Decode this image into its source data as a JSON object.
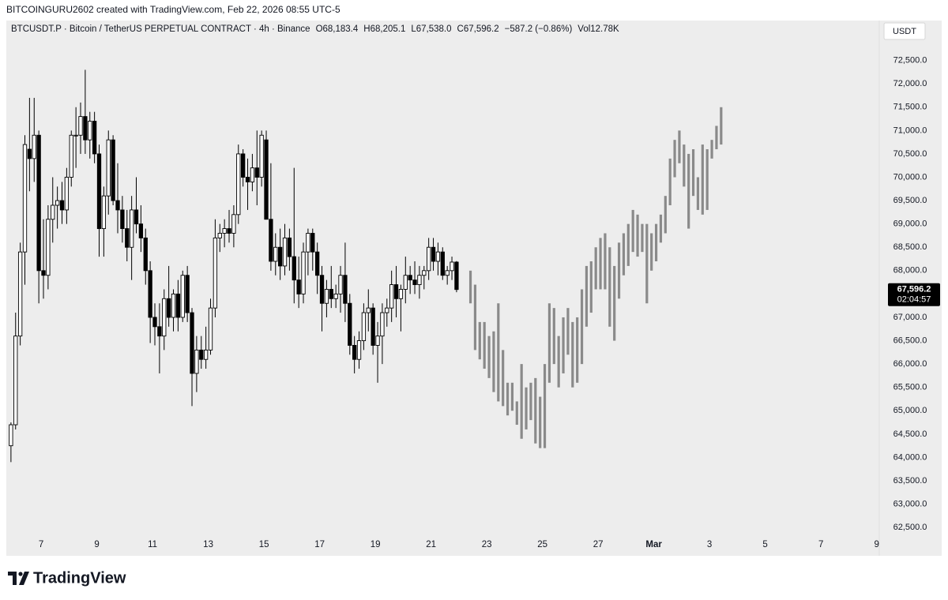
{
  "chart_data": {
    "type": "candlestick",
    "watermark": "BITCOINGURU2602 created with TradingView.com, Feb 22, 2026 08:55 UTC-5",
    "title": "BTCUSDT.P · Bitcoin / TetherUS PERPETUAL CONTRACT · 4h · Binance",
    "stats": [
      "O68,183.4",
      "H68,205.1",
      "L67,538.0",
      "C67,596.2",
      "−587.2 (−0.86%)",
      "Vol12.78K"
    ],
    "currency": "USDT",
    "last_price": {
      "value": 67596.2,
      "label": "67,596.2"
    },
    "countdown": "02:04:57",
    "brand": "TradingView",
    "grid": false,
    "xlim": [
      -7.5,
      180.4
    ],
    "xticks": [
      {
        "value": 0,
        "label": "7"
      },
      {
        "value": 12,
        "label": "9"
      },
      {
        "value": 24,
        "label": "11"
      },
      {
        "value": 36,
        "label": "13"
      },
      {
        "value": 48,
        "label": "15"
      },
      {
        "value": 60,
        "label": "17"
      },
      {
        "value": 72,
        "label": "19"
      },
      {
        "value": 84,
        "label": "21"
      },
      {
        "value": 96,
        "label": "23"
      },
      {
        "value": 108,
        "label": "25"
      },
      {
        "value": 120,
        "label": "27"
      },
      {
        "value": 132,
        "label": "Mar"
      },
      {
        "value": 144,
        "label": "3"
      },
      {
        "value": 156,
        "label": "5"
      },
      {
        "value": 168,
        "label": "7"
      },
      {
        "value": 180,
        "label": "9"
      }
    ],
    "ylim": [
      62300,
      72950
    ],
    "yticks": [
      {
        "value": 62500,
        "label": "62,500.0"
      },
      {
        "value": 63000,
        "label": "63,000.0"
      },
      {
        "value": 63500,
        "label": "63,500.0"
      },
      {
        "value": 64000,
        "label": "64,000.0"
      },
      {
        "value": 64500,
        "label": "64,500.0"
      },
      {
        "value": 65000,
        "label": "65,000.0"
      },
      {
        "value": 65500,
        "label": "65,500.0"
      },
      {
        "value": 66000,
        "label": "66,000.0"
      },
      {
        "value": 66500,
        "label": "66,500.0"
      },
      {
        "value": 67000,
        "label": "67,000.0"
      },
      {
        "value": 67500,
        "label": "67,500.0"
      },
      {
        "value": 68000,
        "label": "68,000.0"
      },
      {
        "value": 68500,
        "label": "68,500.0"
      },
      {
        "value": 69000,
        "label": "69,000.0"
      },
      {
        "value": 69500,
        "label": "69,500.0"
      },
      {
        "value": 70000,
        "label": "70,000.0"
      },
      {
        "value": 70500,
        "label": "70,500.0"
      },
      {
        "value": 71000,
        "label": "71,000.0"
      },
      {
        "value": 71500,
        "label": "71,500.0"
      },
      {
        "value": 72000,
        "label": "72,000.0"
      },
      {
        "value": 72500,
        "label": "72,500.0"
      }
    ],
    "series": [
      {
        "type": "candlestick",
        "up_color": "#ffffff",
        "down_color": "#000000",
        "edge_color": "#000000",
        "x": [
          -7,
          -6,
          -5,
          -4,
          -3,
          -2,
          -1,
          0,
          1,
          2,
          3,
          4,
          5,
          6,
          7,
          8,
          9,
          10,
          11,
          12,
          13,
          14,
          15,
          16,
          17,
          18,
          19,
          20,
          21,
          22,
          23,
          24,
          25,
          26,
          27,
          28,
          29,
          30,
          31,
          32,
          33,
          34,
          35,
          36,
          37,
          38,
          39,
          40,
          41,
          42,
          43,
          44,
          45,
          46,
          47,
          48,
          49,
          50,
          51,
          52,
          53,
          54,
          55,
          56,
          57,
          58,
          59,
          60,
          61,
          62,
          63,
          64,
          65,
          66,
          67,
          68,
          69,
          70,
          71,
          72,
          73,
          74,
          75,
          76,
          77,
          78,
          79,
          80,
          81,
          82,
          83,
          84,
          85,
          86,
          87,
          88,
          89
        ],
        "open": [
          64250,
          64700,
          66600,
          68400,
          70600,
          70400,
          70900,
          68000,
          67900,
          69100,
          69400,
          69500,
          69300,
          70000,
          70900,
          70900,
          71300,
          70800,
          71200,
          70500,
          68900,
          69600,
          70800,
          69500,
          69300,
          68900,
          68500,
          69300,
          69000,
          68700,
          68000,
          67000,
          66800,
          66600,
          67400,
          67000,
          67500,
          67000,
          67900,
          67100,
          65800,
          66300,
          66100,
          66300,
          67200,
          68700,
          68800,
          68900,
          68800,
          69200,
          70500,
          70000,
          69900,
          70200,
          70000,
          70800,
          69100,
          68200,
          68500,
          68100,
          68700,
          68300,
          67800,
          67500,
          68400,
          68800,
          68400,
          67900,
          67300,
          67600,
          67400,
          67500,
          67900,
          67300,
          66400,
          66100,
          66500,
          67100,
          67200,
          66400,
          66600,
          67100,
          67200,
          67700,
          67400,
          67600,
          67900,
          67800,
          67700,
          67900,
          68000,
          68500,
          68200,
          68400,
          67900,
          68000,
          68183.4
        ],
        "high": [
          64750,
          67100,
          68600,
          70900,
          71700,
          71700,
          71000,
          69100,
          69400,
          70000,
          69800,
          69900,
          70200,
          71000,
          71500,
          71600,
          72300,
          71400,
          71400,
          70700,
          69800,
          71000,
          70900,
          70300,
          69600,
          69300,
          69600,
          70000,
          69400,
          68900,
          68200,
          67300,
          67300,
          67600,
          68100,
          67600,
          67800,
          68000,
          68100,
          67200,
          66600,
          66600,
          66800,
          67400,
          69100,
          69000,
          69100,
          69300,
          69400,
          70700,
          70600,
          70400,
          70500,
          71000,
          71000,
          71000,
          70300,
          68800,
          68900,
          69000,
          68900,
          70200,
          68300,
          68600,
          68900,
          68900,
          68600,
          68100,
          67800,
          68100,
          67700,
          68100,
          68600,
          67500,
          66600,
          66700,
          67300,
          67600,
          67300,
          66900,
          67300,
          67400,
          68000,
          68100,
          67700,
          68300,
          68100,
          68200,
          68100,
          68100,
          68700,
          68700,
          68600,
          68500,
          68100,
          68300,
          68205.1
        ],
        "low": [
          63900,
          64600,
          66400,
          67700,
          69700,
          69900,
          67300,
          67400,
          67600,
          68600,
          68900,
          69000,
          69000,
          69800,
          70200,
          70500,
          70500,
          70400,
          70300,
          68300,
          68300,
          69200,
          69400,
          68800,
          68600,
          68200,
          67800,
          68800,
          68400,
          67700,
          66450,
          66400,
          65800,
          66300,
          66800,
          66700,
          66700,
          66900,
          66900,
          65100,
          65400,
          65900,
          65900,
          66200,
          67000,
          68400,
          68500,
          68600,
          68500,
          69000,
          69800,
          69300,
          69700,
          69400,
          69800,
          69100,
          68000,
          67900,
          67800,
          67900,
          68000,
          67300,
          67200,
          67300,
          67900,
          68000,
          67500,
          66700,
          67000,
          67200,
          67200,
          67100,
          66900,
          66200,
          65800,
          65900,
          66300,
          66700,
          66200,
          65600,
          66000,
          66800,
          66900,
          67000,
          66700,
          67300,
          67500,
          67500,
          67400,
          67600,
          67800,
          68000,
          67900,
          67800,
          67700,
          67800,
          67538
        ],
        "close": [
          64700,
          66600,
          68400,
          70700,
          70400,
          70900,
          68000,
          67900,
          69100,
          69400,
          69500,
          69300,
          70000,
          70900,
          70900,
          71300,
          70800,
          71200,
          70500,
          68900,
          69600,
          70800,
          69500,
          69300,
          68900,
          68500,
          69300,
          69000,
          68700,
          68000,
          67000,
          66800,
          66600,
          67400,
          67000,
          67500,
          67000,
          67900,
          67100,
          65800,
          66300,
          66100,
          66300,
          67200,
          68700,
          68800,
          68900,
          68800,
          69200,
          70500,
          70000,
          69900,
          70200,
          70000,
          70900,
          69100,
          68200,
          68500,
          68100,
          68700,
          68300,
          67800,
          67500,
          68400,
          68800,
          68400,
          67900,
          67300,
          67600,
          67400,
          67500,
          67900,
          67300,
          66400,
          66100,
          66500,
          67100,
          67200,
          66400,
          66600,
          67100,
          67200,
          67700,
          67400,
          67600,
          67900,
          67800,
          67700,
          67900,
          68000,
          68500,
          68200,
          68400,
          67900,
          68000,
          68183.4,
          67596.2
        ]
      },
      {
        "type": "range-bar",
        "color": "#8a8a8a",
        "x": [
          92,
          93,
          94,
          95,
          96,
          97,
          98,
          99,
          100,
          101,
          102,
          103,
          104,
          105,
          106,
          107,
          108,
          109,
          110,
          111,
          112,
          113,
          114,
          115,
          116,
          117,
          118,
          119,
          120,
          121,
          122,
          123,
          124,
          125,
          126,
          127,
          128,
          129,
          130,
          131,
          132,
          133,
          134,
          135,
          136,
          137,
          138,
          139,
          140,
          141,
          142,
          143,
          144,
          145,
          146
        ],
        "high": [
          68000,
          67700,
          66900,
          66900,
          66600,
          66700,
          67300,
          66300,
          65600,
          65600,
          65200,
          66000,
          65500,
          65600,
          65700,
          65300,
          66000,
          67300,
          67200,
          66600,
          67000,
          67200,
          66900,
          67000,
          67600,
          68100,
          68200,
          68500,
          68700,
          68800,
          68500,
          68100,
          68600,
          68800,
          69000,
          69300,
          69200,
          69000,
          69000,
          68800,
          69000,
          69200,
          69600,
          70400,
          70800,
          71000,
          70700,
          70500,
          70600,
          70000,
          70700,
          70600,
          70800,
          71100,
          71500
        ],
        "low": [
          67300,
          66300,
          66100,
          65900,
          65700,
          65400,
          65200,
          65100,
          64900,
          65000,
          64700,
          64400,
          64600,
          64800,
          64300,
          64200,
          64200,
          65600,
          66000,
          65500,
          65800,
          66200,
          65500,
          65600,
          66000,
          66800,
          67100,
          67600,
          67600,
          67600,
          66800,
          66500,
          67400,
          67900,
          68100,
          68400,
          68300,
          68400,
          67300,
          68000,
          68200,
          68600,
          68800,
          69400,
          70000,
          70300,
          69800,
          68900,
          69600,
          69300,
          69200,
          69300,
          70400,
          70600,
          70700
        ]
      }
    ]
  }
}
